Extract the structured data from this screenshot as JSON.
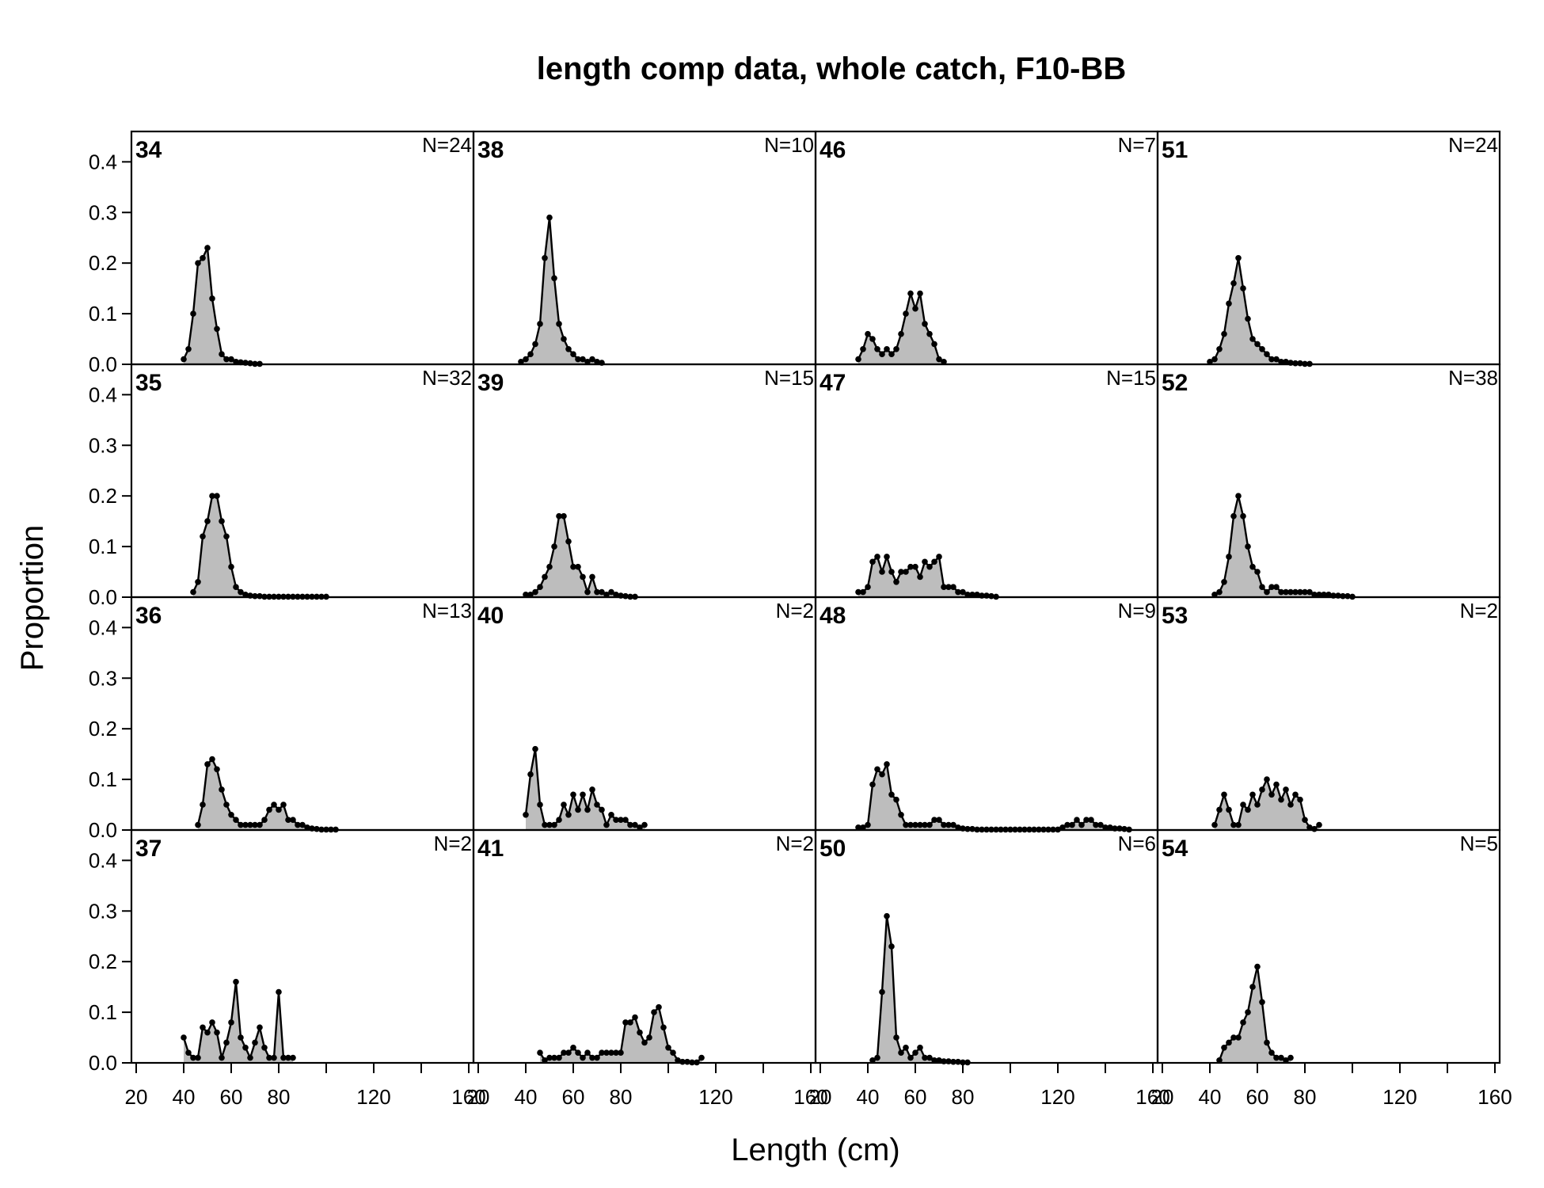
{
  "chart_data": {
    "type": "area",
    "title": "length comp data, whole catch, F10-BB",
    "xlabel": "Length (cm)",
    "ylabel": "Proportion",
    "xlim": [
      18,
      162
    ],
    "ylim": [
      0,
      0.46
    ],
    "x_ticks": [
      20,
      40,
      60,
      80,
      120,
      160
    ],
    "y_ticks": [
      "0.0",
      "0.1",
      "0.2",
      "0.3",
      "0.4"
    ],
    "grid": false,
    "layout": {
      "rows": 4,
      "cols": 4,
      "order": "column-major"
    },
    "fill_color": "#bdbdbd",
    "line_color": "#000000",
    "panels": [
      {
        "label": "34",
        "n": "N=24",
        "x": [
          40,
          42,
          44,
          46,
          48,
          50,
          52,
          54,
          56,
          58,
          60,
          62,
          64,
          66,
          68,
          70,
          72
        ],
        "y": [
          0.01,
          0.03,
          0.1,
          0.2,
          0.21,
          0.23,
          0.13,
          0.07,
          0.02,
          0.01,
          0.01,
          0.005,
          0.004,
          0.003,
          0.002,
          0.001,
          0.001
        ]
      },
      {
        "label": "35",
        "n": "N=32",
        "x": [
          44,
          46,
          48,
          50,
          52,
          54,
          56,
          58,
          60,
          62,
          64,
          66,
          68,
          70,
          72,
          74,
          76,
          78,
          80,
          82,
          84,
          86,
          88,
          90,
          92,
          94,
          96,
          98,
          100
        ],
        "y": [
          0.01,
          0.03,
          0.12,
          0.15,
          0.2,
          0.2,
          0.15,
          0.12,
          0.06,
          0.02,
          0.01,
          0.005,
          0.003,
          0.002,
          0.002,
          0.001,
          0.001,
          0.001,
          0.001,
          0.001,
          0.001,
          0.001,
          0.001,
          0.001,
          0.001,
          0.001,
          0.001,
          0.001,
          0.001
        ]
      },
      {
        "label": "36",
        "n": "N=13",
        "x": [
          46,
          48,
          50,
          52,
          54,
          56,
          58,
          60,
          62,
          64,
          66,
          68,
          70,
          72,
          74,
          76,
          78,
          80,
          82,
          84,
          86,
          88,
          90,
          92,
          94,
          96,
          98,
          100,
          102,
          104
        ],
        "y": [
          0.01,
          0.05,
          0.13,
          0.14,
          0.12,
          0.08,
          0.05,
          0.03,
          0.02,
          0.01,
          0.01,
          0.01,
          0.01,
          0.01,
          0.02,
          0.04,
          0.05,
          0.04,
          0.05,
          0.02,
          0.02,
          0.01,
          0.01,
          0.005,
          0.003,
          0.002,
          0.001,
          0.001,
          0.001,
          0.001
        ]
      },
      {
        "label": "37",
        "n": "N=2",
        "x": [
          40,
          42,
          44,
          46,
          48,
          50,
          52,
          54,
          56,
          58,
          60,
          62,
          64,
          66,
          68,
          70,
          72,
          74,
          76,
          78,
          80,
          82,
          84,
          86
        ],
        "y": [
          0.05,
          0.02,
          0.01,
          0.01,
          0.07,
          0.06,
          0.08,
          0.06,
          0.01,
          0.04,
          0.08,
          0.16,
          0.05,
          0.03,
          0.01,
          0.04,
          0.07,
          0.03,
          0.01,
          0.01,
          0.14,
          0.01,
          0.01,
          0.01
        ]
      },
      {
        "label": "38",
        "n": "N=10",
        "x": [
          38,
          40,
          42,
          44,
          46,
          48,
          50,
          52,
          54,
          56,
          58,
          60,
          62,
          64,
          66,
          68,
          70,
          72
        ],
        "y": [
          0.005,
          0.01,
          0.02,
          0.04,
          0.08,
          0.21,
          0.29,
          0.17,
          0.08,
          0.05,
          0.03,
          0.02,
          0.01,
          0.01,
          0.005,
          0.01,
          0.005,
          0.003
        ]
      },
      {
        "label": "39",
        "n": "N=15",
        "x": [
          40,
          42,
          44,
          46,
          48,
          50,
          52,
          54,
          56,
          58,
          60,
          62,
          64,
          66,
          68,
          70,
          72,
          74,
          76,
          78,
          80,
          82,
          84,
          86
        ],
        "y": [
          0.005,
          0.005,
          0.01,
          0.02,
          0.04,
          0.06,
          0.1,
          0.16,
          0.16,
          0.11,
          0.06,
          0.06,
          0.04,
          0.01,
          0.04,
          0.01,
          0.01,
          0.005,
          0.01,
          0.005,
          0.003,
          0.002,
          0.001,
          0.001
        ]
      },
      {
        "label": "40",
        "n": "N=2",
        "x": [
          40,
          42,
          44,
          46,
          48,
          50,
          52,
          54,
          56,
          58,
          60,
          62,
          64,
          66,
          68,
          70,
          72,
          74,
          76,
          78,
          80,
          82,
          84,
          86,
          88,
          90
        ],
        "y": [
          0.03,
          0.11,
          0.16,
          0.05,
          0.01,
          0.01,
          0.01,
          0.02,
          0.05,
          0.03,
          0.07,
          0.04,
          0.07,
          0.04,
          0.08,
          0.05,
          0.04,
          0.01,
          0.03,
          0.02,
          0.02,
          0.02,
          0.01,
          0.01,
          0.005,
          0.01
        ]
      },
      {
        "label": "41",
        "n": "N=2",
        "x": [
          46,
          48,
          50,
          52,
          54,
          56,
          58,
          60,
          62,
          64,
          66,
          68,
          70,
          72,
          74,
          76,
          78,
          80,
          82,
          84,
          86,
          88,
          90,
          92,
          94,
          96,
          98,
          100,
          102,
          104,
          106,
          108,
          110,
          112,
          114
        ],
        "y": [
          0.02,
          0.005,
          0.01,
          0.01,
          0.01,
          0.02,
          0.02,
          0.03,
          0.02,
          0.01,
          0.02,
          0.01,
          0.01,
          0.02,
          0.02,
          0.02,
          0.02,
          0.02,
          0.08,
          0.08,
          0.09,
          0.06,
          0.04,
          0.05,
          0.1,
          0.11,
          0.07,
          0.03,
          0.02,
          0.005,
          0.002,
          0.002,
          0.001,
          0.001,
          0.01
        ]
      },
      {
        "label": "46",
        "n": "N=7",
        "x": [
          36,
          38,
          40,
          42,
          44,
          46,
          48,
          50,
          52,
          54,
          56,
          58,
          60,
          62,
          64,
          66,
          68,
          70,
          72
        ],
        "y": [
          0.01,
          0.03,
          0.06,
          0.05,
          0.03,
          0.02,
          0.03,
          0.02,
          0.03,
          0.06,
          0.1,
          0.14,
          0.11,
          0.14,
          0.08,
          0.06,
          0.04,
          0.01,
          0.005
        ]
      },
      {
        "label": "47",
        "n": "N=15",
        "x": [
          36,
          38,
          40,
          42,
          44,
          46,
          48,
          50,
          52,
          54,
          56,
          58,
          60,
          62,
          64,
          66,
          68,
          70,
          72,
          74,
          76,
          78,
          80,
          82,
          84,
          86,
          88,
          90,
          92,
          94
        ],
        "y": [
          0.01,
          0.01,
          0.02,
          0.07,
          0.08,
          0.05,
          0.08,
          0.05,
          0.03,
          0.05,
          0.05,
          0.06,
          0.06,
          0.04,
          0.07,
          0.06,
          0.07,
          0.08,
          0.02,
          0.02,
          0.02,
          0.01,
          0.01,
          0.005,
          0.005,
          0.005,
          0.003,
          0.003,
          0.002,
          0.001
        ]
      },
      {
        "label": "48",
        "n": "N=9",
        "x": [
          36,
          38,
          40,
          42,
          44,
          46,
          48,
          50,
          52,
          54,
          56,
          58,
          60,
          62,
          64,
          66,
          68,
          70,
          72,
          74,
          76,
          78,
          80,
          82,
          84,
          86,
          88,
          90,
          92,
          94,
          96,
          98,
          100,
          102,
          104,
          106,
          108,
          110,
          112,
          114,
          116,
          118,
          120,
          122,
          124,
          126,
          128,
          130,
          132,
          134,
          136,
          138,
          140,
          142,
          144,
          146,
          148,
          150
        ],
        "y": [
          0.005,
          0.005,
          0.01,
          0.09,
          0.12,
          0.11,
          0.13,
          0.07,
          0.06,
          0.03,
          0.01,
          0.01,
          0.01,
          0.01,
          0.01,
          0.01,
          0.02,
          0.02,
          0.01,
          0.01,
          0.01,
          0.005,
          0.003,
          0.002,
          0.002,
          0.001,
          0.001,
          0.001,
          0.001,
          0.001,
          0.001,
          0.001,
          0.001,
          0.001,
          0.001,
          0.001,
          0.001,
          0.001,
          0.001,
          0.001,
          0.001,
          0.001,
          0.001,
          0.005,
          0.01,
          0.01,
          0.02,
          0.01,
          0.02,
          0.02,
          0.01,
          0.01,
          0.005,
          0.005,
          0.003,
          0.003,
          0.002,
          0.001
        ]
      },
      {
        "label": "50",
        "n": "N=6",
        "x": [
          42,
          44,
          46,
          48,
          50,
          52,
          54,
          56,
          58,
          60,
          62,
          64,
          66,
          68,
          70,
          72,
          74,
          76,
          78,
          80,
          82
        ],
        "y": [
          0.005,
          0.01,
          0.14,
          0.29,
          0.23,
          0.05,
          0.02,
          0.03,
          0.01,
          0.02,
          0.03,
          0.01,
          0.01,
          0.005,
          0.005,
          0.003,
          0.003,
          0.002,
          0.002,
          0.001,
          0.001
        ]
      },
      {
        "label": "51",
        "n": "N=24",
        "x": [
          40,
          42,
          44,
          46,
          48,
          50,
          52,
          54,
          56,
          58,
          60,
          62,
          64,
          66,
          68,
          70,
          72,
          74,
          76,
          78,
          80,
          82
        ],
        "y": [
          0.005,
          0.01,
          0.03,
          0.06,
          0.12,
          0.16,
          0.21,
          0.15,
          0.09,
          0.05,
          0.04,
          0.03,
          0.02,
          0.01,
          0.01,
          0.005,
          0.005,
          0.003,
          0.002,
          0.002,
          0.001,
          0.001
        ]
      },
      {
        "label": "52",
        "n": "N=38",
        "x": [
          42,
          44,
          46,
          48,
          50,
          52,
          54,
          56,
          58,
          60,
          62,
          64,
          66,
          68,
          70,
          72,
          74,
          76,
          78,
          80,
          82,
          84,
          86,
          88,
          90,
          92,
          94,
          96,
          98,
          100
        ],
        "y": [
          0.005,
          0.01,
          0.03,
          0.08,
          0.16,
          0.2,
          0.16,
          0.1,
          0.06,
          0.05,
          0.02,
          0.01,
          0.02,
          0.02,
          0.01,
          0.01,
          0.01,
          0.01,
          0.01,
          0.01,
          0.01,
          0.005,
          0.005,
          0.005,
          0.005,
          0.003,
          0.003,
          0.002,
          0.002,
          0.001
        ]
      },
      {
        "label": "53",
        "n": "N=2",
        "x": [
          42,
          44,
          46,
          48,
          50,
          52,
          54,
          56,
          58,
          60,
          62,
          64,
          66,
          68,
          70,
          72,
          74,
          76,
          78,
          80,
          82,
          84,
          86
        ],
        "y": [
          0.01,
          0.04,
          0.07,
          0.04,
          0.01,
          0.01,
          0.05,
          0.04,
          0.07,
          0.05,
          0.08,
          0.1,
          0.07,
          0.09,
          0.06,
          0.08,
          0.05,
          0.07,
          0.06,
          0.02,
          0.005,
          0.002,
          0.01
        ]
      },
      {
        "label": "54",
        "n": "N=5",
        "x": [
          44,
          46,
          48,
          50,
          52,
          54,
          56,
          58,
          60,
          62,
          64,
          66,
          68,
          70,
          72,
          74
        ],
        "y": [
          0.005,
          0.03,
          0.04,
          0.05,
          0.05,
          0.08,
          0.1,
          0.15,
          0.19,
          0.12,
          0.04,
          0.02,
          0.01,
          0.01,
          0.005,
          0.01
        ]
      }
    ]
  }
}
